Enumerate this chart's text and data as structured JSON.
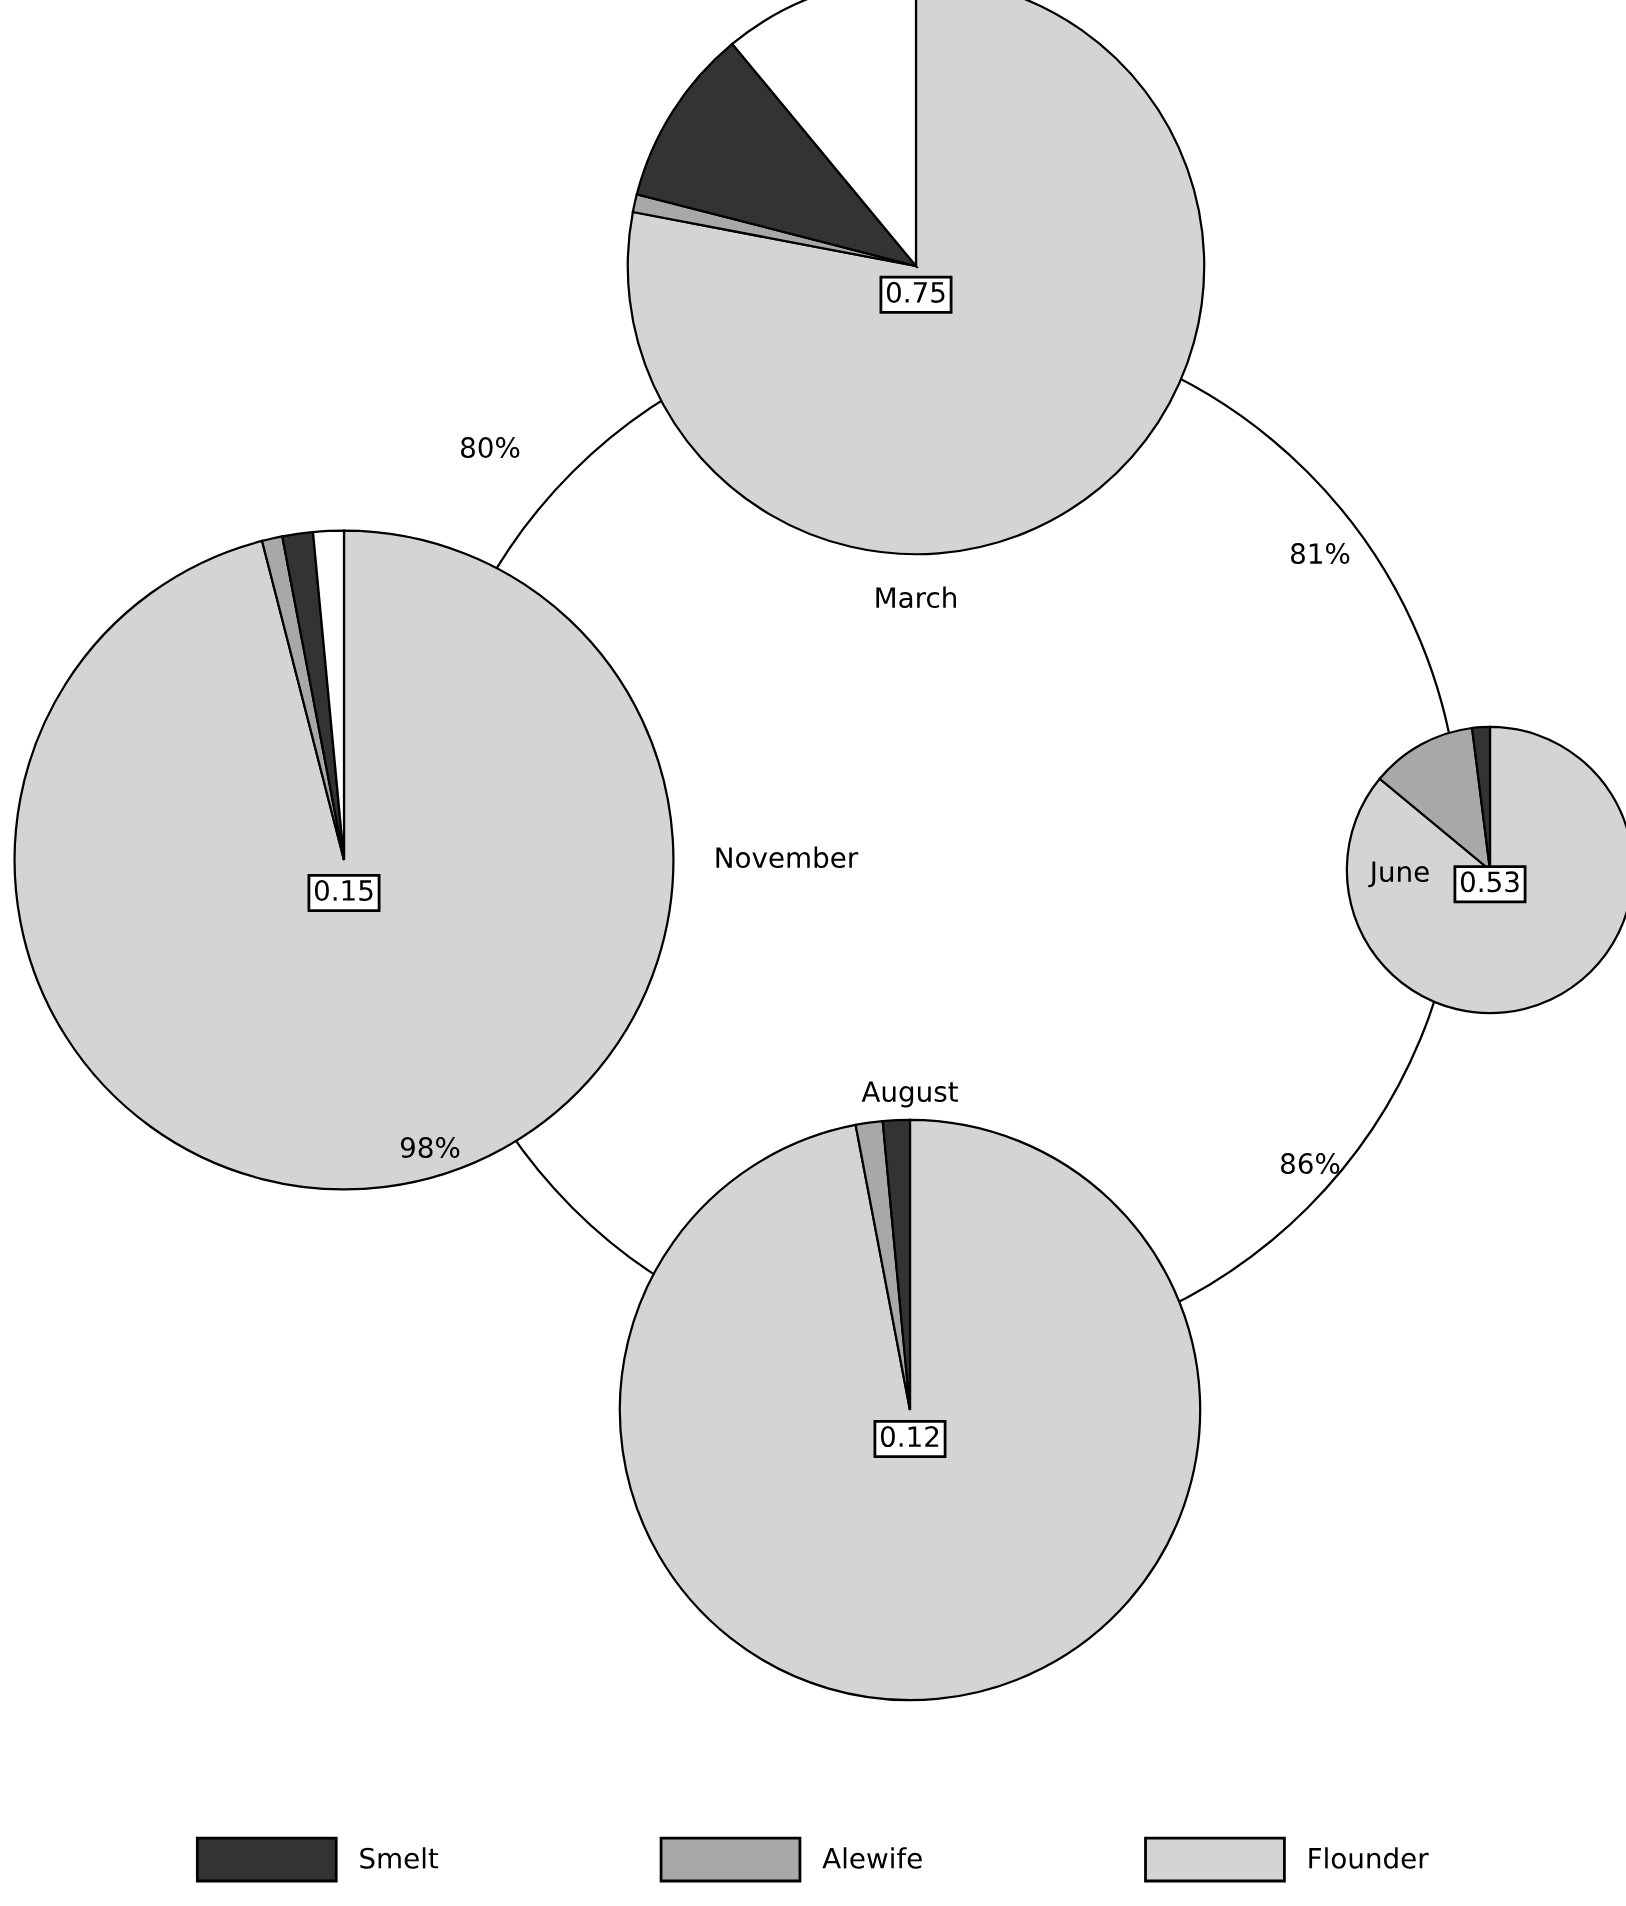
{
  "chart_data": [
    {
      "type": "pie",
      "title": "March",
      "categories": [
        "Flounder",
        "Alewife",
        "Smelt",
        null
      ],
      "values": [
        78,
        1,
        10,
        11
      ],
      "colors": [
        "#d4d4d4",
        "#a8a8a8",
        "#333333",
        "#ffffff"
      ],
      "annotations": [
        "0.75"
      ],
      "legend": "bottom"
    },
    {
      "type": "pie",
      "title": "June",
      "categories": [
        null,
        null,
        null
      ],
      "values": [
        86,
        12,
        2
      ],
      "colors": [
        "#d4d4d4",
        "#a8a8a8",
        "#333333"
      ],
      "annotations": [
        "0.53"
      ]
    },
    {
      "type": "pie",
      "title": "August",
      "categories": [
        null,
        null,
        null
      ],
      "values": [
        97,
        1.5,
        1.5
      ],
      "colors": [
        "#d4d4d4",
        "#a8a8a8",
        "#333333"
      ],
      "annotations": [
        "0.12"
      ]
    },
    {
      "type": "pie",
      "title": "November",
      "categories": [
        null,
        null,
        null,
        null
      ],
      "values": [
        96,
        1,
        1.5,
        1.5
      ],
      "colors": [
        "#d4d4d4",
        "#a8a8a8",
        "#333333",
        "#ffffff"
      ],
      "annotations": [
        "0.15"
      ]
    },
    {
      "type": "other",
      "annotations": [
        "81%",
        "86%",
        "98%",
        "80%"
      ]
    }
  ]
}
